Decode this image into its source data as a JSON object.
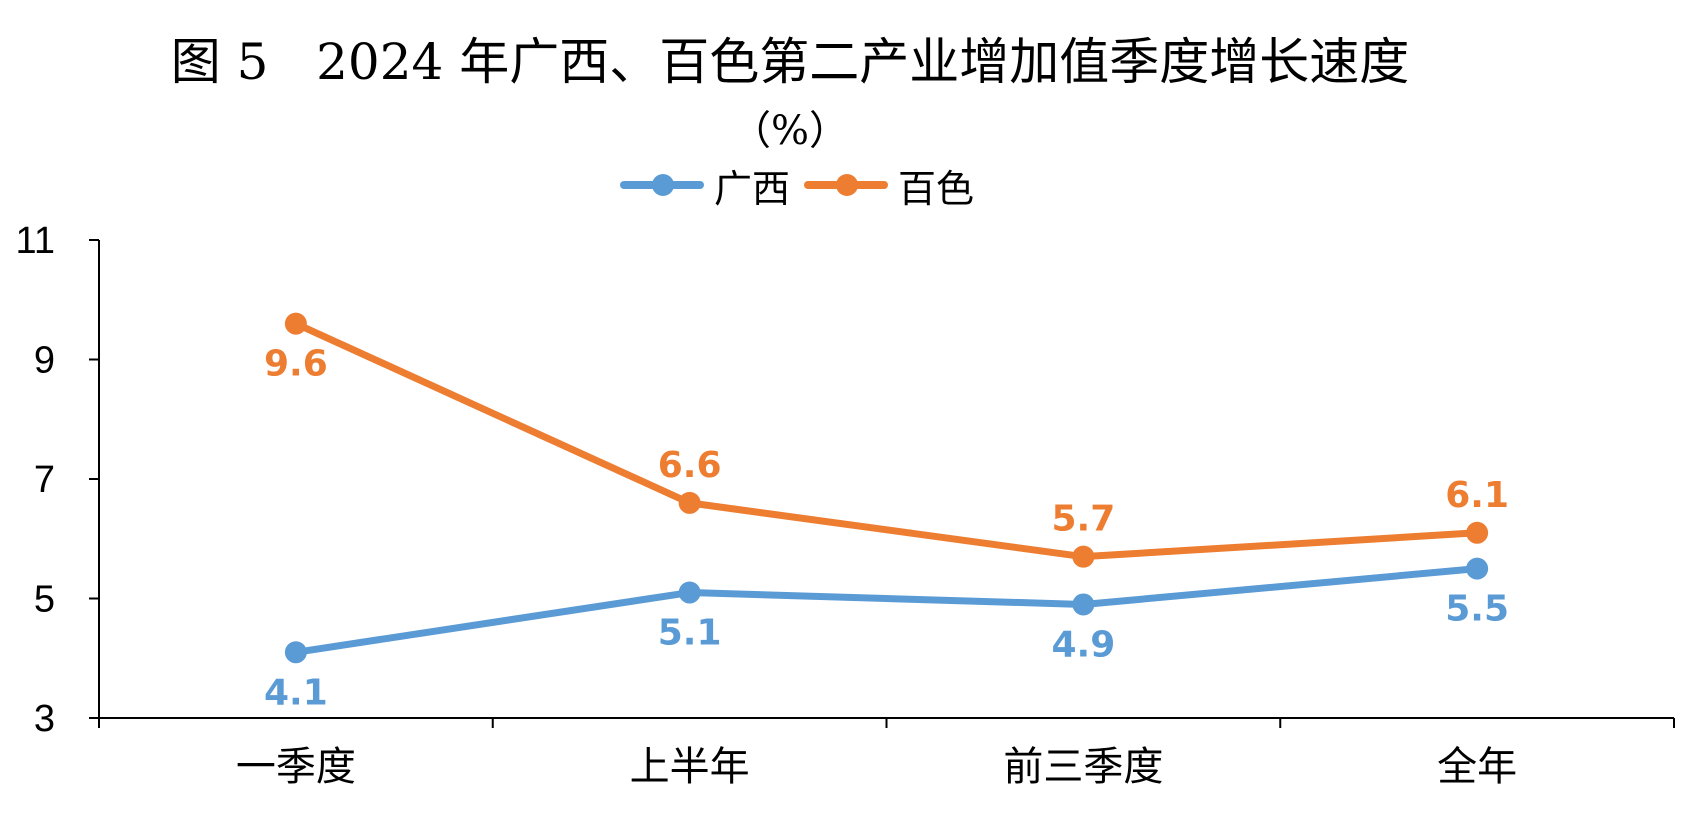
{
  "title": "图 5   2024 年广西、百色第二产业增加值季度增长速度",
  "unit": "（%）",
  "chart_data": {
    "type": "line",
    "title": "图 5   2024 年广西、百色第二产业增加值季度增长速度",
    "subtitle": "（%）",
    "categories": [
      "一季度",
      "上半年",
      "前三季度",
      "全年"
    ],
    "series": [
      {
        "name": "广西",
        "values": [
          4.1,
          5.1,
          4.9,
          5.5
        ],
        "color": "#5B9BD5"
      },
      {
        "name": "百色",
        "values": [
          9.6,
          6.6,
          5.7,
          6.1
        ],
        "color": "#ED7D31"
      }
    ],
    "ylim": [
      3,
      11
    ],
    "yticks": [
      3,
      5,
      7,
      9,
      11
    ],
    "xlabel": "",
    "ylabel": "",
    "grid": false,
    "legend_position": "top"
  }
}
